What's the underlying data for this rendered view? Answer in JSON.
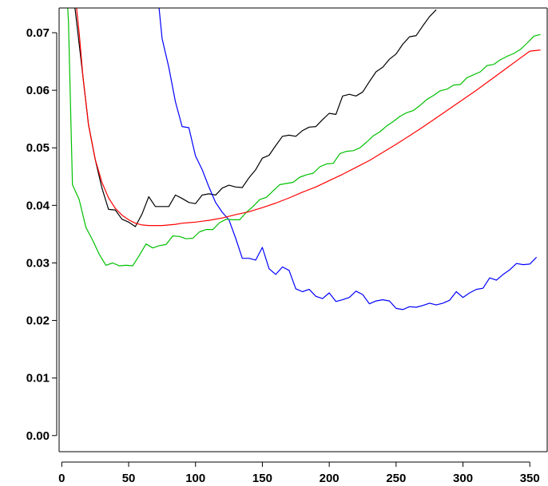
{
  "chart_data": {
    "type": "line",
    "title": "",
    "xlabel": "",
    "ylabel": "",
    "xlim": [
      -2,
      363
    ],
    "ylim": [
      -0.0028,
      0.0743
    ],
    "x_ticks": [
      0,
      50,
      100,
      150,
      200,
      250,
      300,
      350
    ],
    "x_tick_labels": [
      "0",
      "50",
      "100",
      "150",
      "200",
      "250",
      "300",
      "350"
    ],
    "y_ticks": [
      0.0,
      0.01,
      0.02,
      0.03,
      0.04,
      0.05,
      0.06,
      0.07
    ],
    "y_tick_labels": [
      "0.00",
      "0.01",
      "0.02",
      "0.03",
      "0.04",
      "0.05",
      "0.06",
      "0.07"
    ],
    "grid": false,
    "legend": "none",
    "series": [
      {
        "color": "#000000",
        "points": [
          [
            5,
            0.08
          ],
          [
            10,
            0.074
          ],
          [
            15,
            0.064
          ],
          [
            20,
            0.054
          ],
          [
            25,
            0.048
          ],
          [
            30,
            0.043
          ],
          [
            35,
            0.0393
          ],
          [
            40,
            0.0392
          ],
          [
            45,
            0.0376
          ],
          [
            50,
            0.0371
          ],
          [
            55,
            0.0363
          ],
          [
            60,
            0.0385
          ],
          [
            65,
            0.0415
          ],
          [
            70,
            0.0398
          ],
          [
            75,
            0.0398
          ],
          [
            80,
            0.0398
          ],
          [
            85,
            0.0418
          ],
          [
            90,
            0.0412
          ],
          [
            95,
            0.0405
          ],
          [
            100,
            0.0403
          ],
          [
            105,
            0.0418
          ],
          [
            110,
            0.042
          ],
          [
            115,
            0.0418
          ],
          [
            120,
            0.043
          ],
          [
            125,
            0.0435
          ],
          [
            130,
            0.0432
          ],
          [
            135,
            0.0431
          ],
          [
            140,
            0.0448
          ],
          [
            145,
            0.0462
          ],
          [
            150,
            0.0482
          ],
          [
            155,
            0.0487
          ],
          [
            160,
            0.0504
          ],
          [
            165,
            0.052
          ],
          [
            170,
            0.0522
          ],
          [
            175,
            0.052
          ],
          [
            180,
            0.053
          ],
          [
            185,
            0.0536
          ],
          [
            190,
            0.0537
          ],
          [
            195,
            0.0549
          ],
          [
            200,
            0.056
          ],
          [
            205,
            0.0558
          ],
          [
            210,
            0.059
          ],
          [
            215,
            0.0593
          ],
          [
            220,
            0.059
          ],
          [
            225,
            0.0597
          ],
          [
            230,
            0.0615
          ],
          [
            235,
            0.0632
          ],
          [
            240,
            0.064
          ],
          [
            245,
            0.0654
          ],
          [
            250,
            0.0663
          ],
          [
            255,
            0.068
          ],
          [
            260,
            0.0693
          ],
          [
            265,
            0.0695
          ],
          [
            270,
            0.0712
          ],
          [
            275,
            0.0728
          ],
          [
            280,
            0.074
          ]
        ]
      },
      {
        "color": "#0000ff",
        "points": [
          [
            72,
            0.076
          ],
          [
            75,
            0.069
          ],
          [
            80,
            0.064
          ],
          [
            85,
            0.058
          ],
          [
            90,
            0.0537
          ],
          [
            95,
            0.0535
          ],
          [
            100,
            0.0486
          ],
          [
            105,
            0.0462
          ],
          [
            110,
            0.0432
          ],
          [
            115,
            0.0405
          ],
          [
            120,
            0.0388
          ],
          [
            125,
            0.0375
          ],
          [
            130,
            0.0343
          ],
          [
            135,
            0.0308
          ],
          [
            140,
            0.0308
          ],
          [
            145,
            0.0305
          ],
          [
            150,
            0.0327
          ],
          [
            155,
            0.029
          ],
          [
            160,
            0.028
          ],
          [
            165,
            0.0293
          ],
          [
            170,
            0.0287
          ],
          [
            175,
            0.0255
          ],
          [
            180,
            0.025
          ],
          [
            185,
            0.0254
          ],
          [
            190,
            0.0242
          ],
          [
            195,
            0.0238
          ],
          [
            200,
            0.0248
          ],
          [
            205,
            0.0233
          ],
          [
            210,
            0.0236
          ],
          [
            215,
            0.024
          ],
          [
            220,
            0.0251
          ],
          [
            225,
            0.0245
          ],
          [
            230,
            0.0229
          ],
          [
            235,
            0.0234
          ],
          [
            240,
            0.0236
          ],
          [
            245,
            0.0234
          ],
          [
            250,
            0.0221
          ],
          [
            255,
            0.0219
          ],
          [
            260,
            0.0224
          ],
          [
            265,
            0.0223
          ],
          [
            270,
            0.0226
          ],
          [
            275,
            0.023
          ],
          [
            280,
            0.0227
          ],
          [
            285,
            0.023
          ],
          [
            290,
            0.0235
          ],
          [
            295,
            0.025
          ],
          [
            300,
            0.024
          ],
          [
            305,
            0.0248
          ],
          [
            310,
            0.0254
          ],
          [
            315,
            0.0256
          ],
          [
            320,
            0.0274
          ],
          [
            325,
            0.027
          ],
          [
            330,
            0.028
          ],
          [
            335,
            0.0288
          ],
          [
            340,
            0.0299
          ],
          [
            345,
            0.0297
          ],
          [
            350,
            0.0298
          ],
          [
            355,
            0.031
          ]
        ]
      },
      {
        "color": "#00c000",
        "points": [
          [
            3,
            0.08
          ],
          [
            5,
            0.072
          ],
          [
            8,
            0.0436
          ],
          [
            13,
            0.041
          ],
          [
            18,
            0.0362
          ],
          [
            23,
            0.034
          ],
          [
            28,
            0.0315
          ],
          [
            33,
            0.0296
          ],
          [
            38,
            0.03
          ],
          [
            43,
            0.0295
          ],
          [
            48,
            0.0296
          ],
          [
            53,
            0.0295
          ],
          [
            58,
            0.0313
          ],
          [
            63,
            0.0333
          ],
          [
            68,
            0.0326
          ],
          [
            73,
            0.033
          ],
          [
            78,
            0.0332
          ],
          [
            83,
            0.0347
          ],
          [
            88,
            0.0346
          ],
          [
            93,
            0.0342
          ],
          [
            98,
            0.0343
          ],
          [
            103,
            0.0354
          ],
          [
            108,
            0.0358
          ],
          [
            113,
            0.0358
          ],
          [
            118,
            0.037
          ],
          [
            123,
            0.0376
          ],
          [
            128,
            0.0375
          ],
          [
            133,
            0.0375
          ],
          [
            138,
            0.0388
          ],
          [
            143,
            0.0398
          ],
          [
            148,
            0.041
          ],
          [
            153,
            0.0414
          ],
          [
            158,
            0.0425
          ],
          [
            163,
            0.0436
          ],
          [
            168,
            0.0438
          ],
          [
            173,
            0.044
          ],
          [
            178,
            0.0449
          ],
          [
            183,
            0.0453
          ],
          [
            188,
            0.0456
          ],
          [
            193,
            0.0467
          ],
          [
            198,
            0.0472
          ],
          [
            203,
            0.0473
          ],
          [
            208,
            0.049
          ],
          [
            213,
            0.0494
          ],
          [
            218,
            0.0495
          ],
          [
            223,
            0.05
          ],
          [
            228,
            0.051
          ],
          [
            233,
            0.0521
          ],
          [
            238,
            0.0528
          ],
          [
            243,
            0.0538
          ],
          [
            248,
            0.0546
          ],
          [
            253,
            0.0555
          ],
          [
            258,
            0.0561
          ],
          [
            263,
            0.0565
          ],
          [
            268,
            0.0574
          ],
          [
            273,
            0.0584
          ],
          [
            278,
            0.0591
          ],
          [
            283,
            0.0599
          ],
          [
            288,
            0.0602
          ],
          [
            293,
            0.0609
          ],
          [
            298,
            0.061
          ],
          [
            303,
            0.0622
          ],
          [
            308,
            0.0627
          ],
          [
            313,
            0.0632
          ],
          [
            318,
            0.0643
          ],
          [
            323,
            0.0645
          ],
          [
            328,
            0.0653
          ],
          [
            333,
            0.0659
          ],
          [
            338,
            0.0664
          ],
          [
            343,
            0.0671
          ],
          [
            348,
            0.0682
          ],
          [
            353,
            0.0694
          ],
          [
            358,
            0.0697
          ]
        ]
      },
      {
        "color": "#ff0000",
        "points": [
          [
            10,
            0.0765
          ],
          [
            13,
            0.07
          ],
          [
            16,
            0.062
          ],
          [
            20,
            0.054
          ],
          [
            25,
            0.048
          ],
          [
            30,
            0.044
          ],
          [
            35,
            0.0413
          ],
          [
            40,
            0.0395
          ],
          [
            45,
            0.0383
          ],
          [
            50,
            0.0375
          ],
          [
            55,
            0.0369
          ],
          [
            60,
            0.0366
          ],
          [
            65,
            0.0365
          ],
          [
            70,
            0.0365
          ],
          [
            75,
            0.0365
          ],
          [
            80,
            0.0366
          ],
          [
            85,
            0.0367
          ],
          [
            90,
            0.0369
          ],
          [
            95,
            0.037
          ],
          [
            100,
            0.0371
          ],
          [
            110,
            0.0374
          ],
          [
            120,
            0.0378
          ],
          [
            130,
            0.0384
          ],
          [
            140,
            0.0389
          ],
          [
            150,
            0.0396
          ],
          [
            160,
            0.0404
          ],
          [
            170,
            0.0413
          ],
          [
            180,
            0.0423
          ],
          [
            190,
            0.0432
          ],
          [
            200,
            0.0443
          ],
          [
            210,
            0.0454
          ],
          [
            220,
            0.0466
          ],
          [
            230,
            0.0478
          ],
          [
            240,
            0.0492
          ],
          [
            250,
            0.0506
          ],
          [
            260,
            0.0521
          ],
          [
            270,
            0.0536
          ],
          [
            280,
            0.0552
          ],
          [
            290,
            0.0568
          ],
          [
            300,
            0.0584
          ],
          [
            310,
            0.06
          ],
          [
            320,
            0.0617
          ],
          [
            330,
            0.0634
          ],
          [
            340,
            0.0651
          ],
          [
            350,
            0.0668
          ],
          [
            358,
            0.067
          ]
        ]
      }
    ]
  }
}
